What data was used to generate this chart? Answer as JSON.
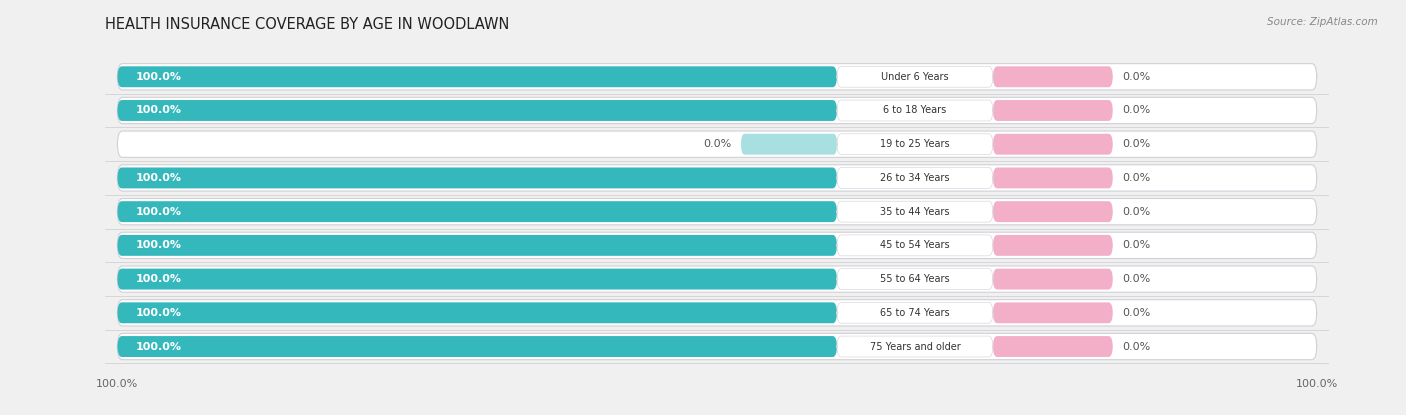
{
  "title": "HEALTH INSURANCE COVERAGE BY AGE IN WOODLAWN",
  "source": "Source: ZipAtlas.com",
  "categories": [
    "Under 6 Years",
    "6 to 18 Years",
    "19 to 25 Years",
    "26 to 34 Years",
    "35 to 44 Years",
    "45 to 54 Years",
    "55 to 64 Years",
    "65 to 74 Years",
    "75 Years and older"
  ],
  "with_coverage": [
    100.0,
    100.0,
    0.0,
    100.0,
    100.0,
    100.0,
    100.0,
    100.0,
    100.0
  ],
  "without_coverage": [
    0.0,
    0.0,
    0.0,
    0.0,
    0.0,
    0.0,
    0.0,
    0.0,
    0.0
  ],
  "color_with": "#35b8bc",
  "color_with_light": "#a8dfe0",
  "color_without": "#f4afc8",
  "background_color": "#f0f0f0",
  "bar_bg_color": "#e8e8ec",
  "row_bg_color": "#ffffff",
  "title_fontsize": 10.5,
  "label_fontsize": 8,
  "tick_fontsize": 8,
  "source_fontsize": 7.5,
  "legend_fontsize": 8.5
}
